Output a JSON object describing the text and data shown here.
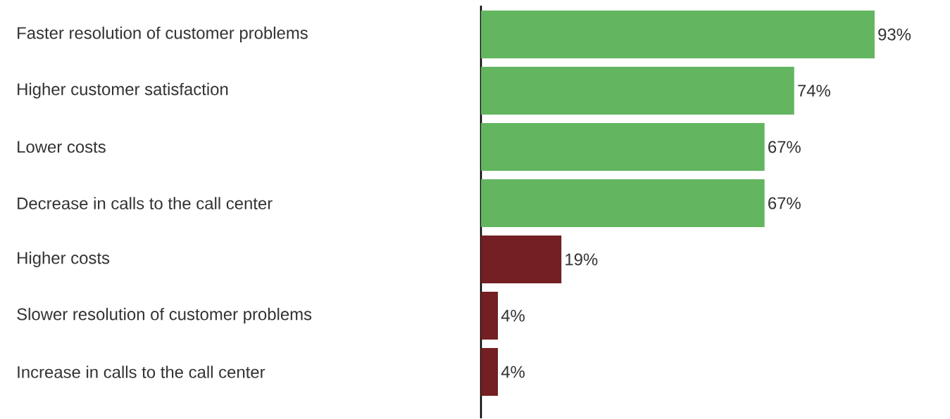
{
  "chart_data": {
    "type": "bar",
    "orientation": "horizontal",
    "categories": [
      "Faster resolution of customer problems",
      "Higher customer satisfaction",
      "Lower costs",
      "Decrease in calls to the call center",
      "Higher costs",
      "Slower resolution of customer problems",
      "Increase in calls to the call center"
    ],
    "values": [
      93,
      74,
      67,
      67,
      19,
      4,
      4
    ],
    "colors": [
      "#63b560",
      "#63b560",
      "#63b560",
      "#63b560",
      "#731f23",
      "#731f23",
      "#731f23"
    ],
    "value_labels": [
      "93%",
      "74%",
      "67%",
      "67%",
      "19%",
      "4%",
      "4%"
    ]
  }
}
